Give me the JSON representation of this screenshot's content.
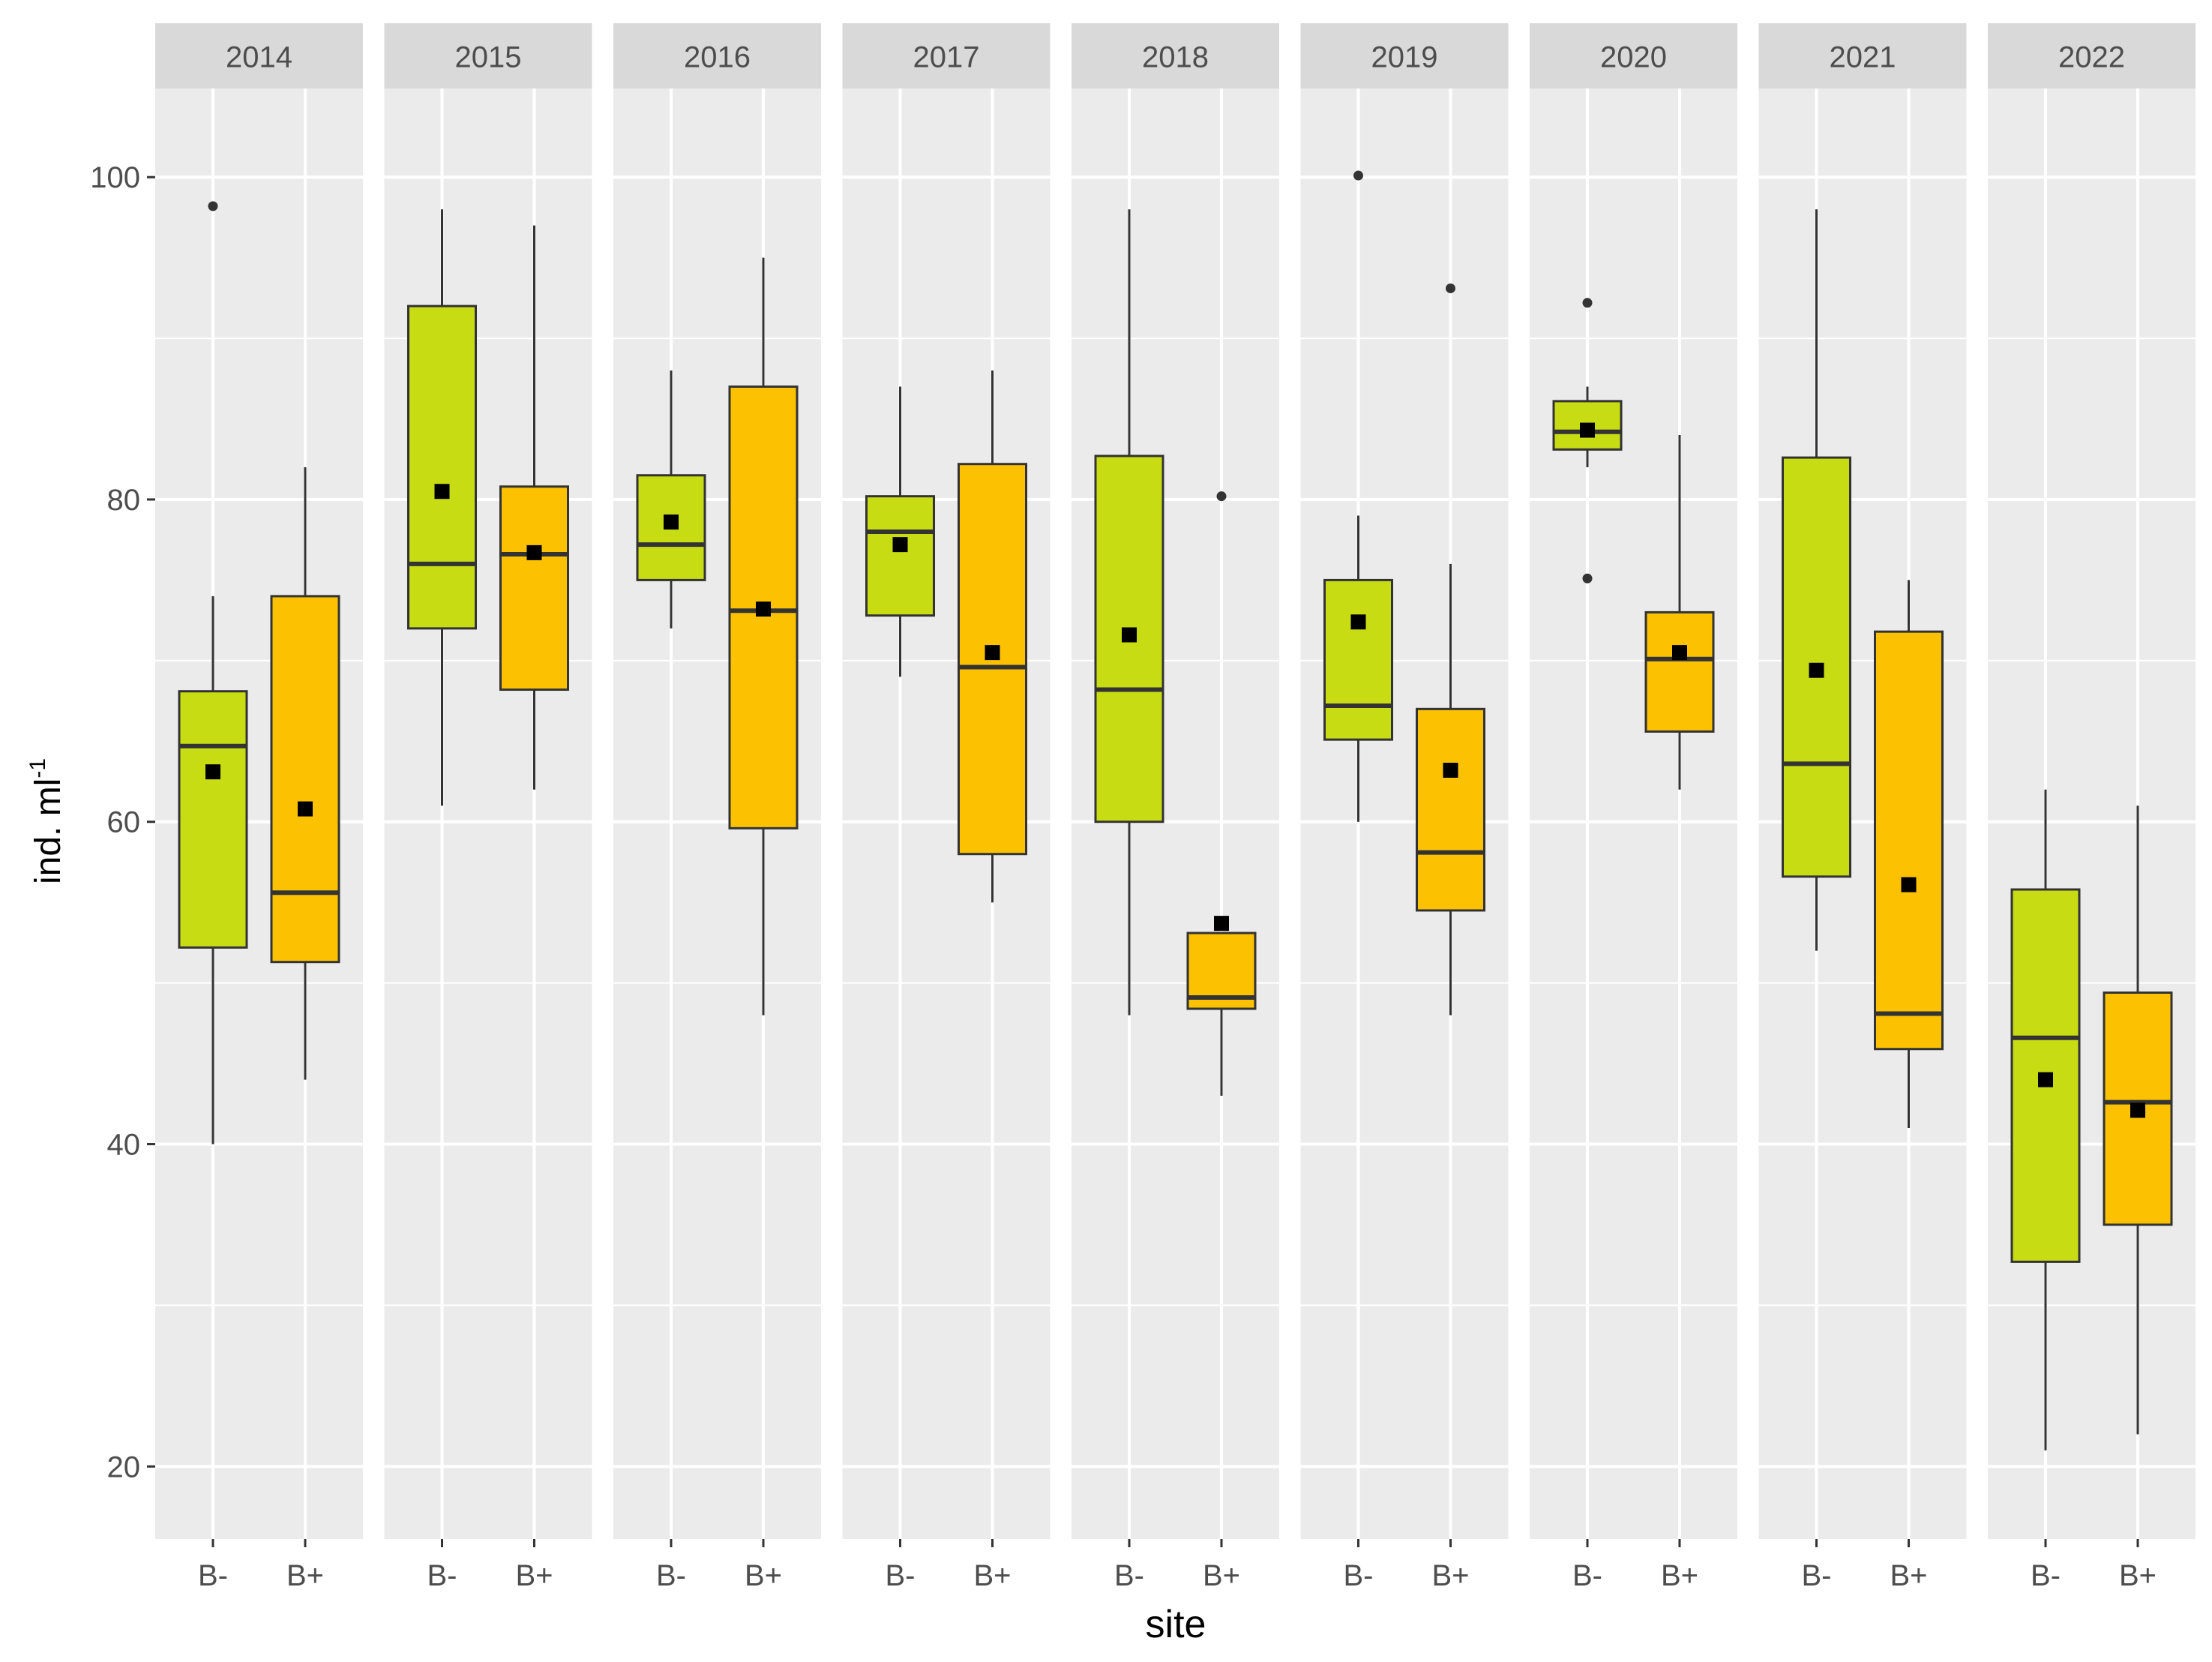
{
  "chart_data": {
    "type": "boxplot",
    "xlabel": "site",
    "ylabel_main": "ind. ml",
    "ylabel_sup": "-1",
    "ylim": [
      15.5,
      105.5
    ],
    "yticks": [
      20,
      40,
      60,
      80,
      100
    ],
    "ytick_labels": [
      "20",
      "40",
      "60",
      "80",
      "100"
    ],
    "grid": true,
    "categories": [
      "B-",
      "B+"
    ],
    "fill_colors": {
      "B-": "#c8dc14",
      "B+": "#fcc100"
    },
    "outline_color": "#333333",
    "panel_bg": "#ebebeb",
    "strip_bg": "#d9d9d9",
    "panels": [
      {
        "year": "2014",
        "boxes": [
          {
            "site": "B-",
            "min": 40,
            "q1": 52.2,
            "median": 64.7,
            "q3": 68.1,
            "max": 74,
            "mean": 63.1,
            "outliers": [
              98.2
            ]
          },
          {
            "site": "B+",
            "min": 44,
            "q1": 51.3,
            "median": 55.6,
            "q3": 74,
            "max": 82,
            "mean": 60.8,
            "outliers": []
          }
        ]
      },
      {
        "year": "2015",
        "boxes": [
          {
            "site": "B-",
            "min": 61,
            "q1": 72,
            "median": 76,
            "q3": 92,
            "max": 98,
            "mean": 80.5,
            "outliers": []
          },
          {
            "site": "B+",
            "min": 62,
            "q1": 68.2,
            "median": 76.6,
            "q3": 80.8,
            "max": 97,
            "mean": 76.7,
            "outliers": []
          }
        ]
      },
      {
        "year": "2016",
        "boxes": [
          {
            "site": "B-",
            "min": 72,
            "q1": 75,
            "median": 77.2,
            "q3": 81.5,
            "max": 88,
            "mean": 78.6,
            "outliers": []
          },
          {
            "site": "B+",
            "min": 48,
            "q1": 59.6,
            "median": 73.1,
            "q3": 87,
            "max": 95,
            "mean": 73.2,
            "outliers": []
          }
        ]
      },
      {
        "year": "2017",
        "boxes": [
          {
            "site": "B-",
            "min": 69,
            "q1": 72.8,
            "median": 78,
            "q3": 80.2,
            "max": 87,
            "mean": 77.2,
            "outliers": []
          },
          {
            "site": "B+",
            "min": 55,
            "q1": 58,
            "median": 69.6,
            "q3": 82.2,
            "max": 88,
            "mean": 70.5,
            "outliers": []
          }
        ]
      },
      {
        "year": "2018",
        "boxes": [
          {
            "site": "B-",
            "min": 48,
            "q1": 60,
            "median": 68.2,
            "q3": 82.7,
            "max": 98,
            "mean": 71.6,
            "outliers": []
          },
          {
            "site": "B+",
            "min": 43,
            "q1": 48.4,
            "median": 49.1,
            "q3": 53.1,
            "max": 53.1,
            "mean": 53.7,
            "outliers": [
              80.2
            ]
          }
        ]
      },
      {
        "year": "2019",
        "boxes": [
          {
            "site": "B-",
            "min": 60,
            "q1": 65.1,
            "median": 67.2,
            "q3": 75,
            "max": 79,
            "mean": 72.4,
            "outliers": [
              100.1
            ]
          },
          {
            "site": "B+",
            "min": 48,
            "q1": 54.5,
            "median": 58.1,
            "q3": 67,
            "max": 76,
            "mean": 63.2,
            "outliers": [
              93.1
            ]
          }
        ]
      },
      {
        "year": "2020",
        "boxes": [
          {
            "site": "B-",
            "min": 82,
            "q1": 83.1,
            "median": 84.2,
            "q3": 86.1,
            "max": 87,
            "mean": 84.3,
            "outliers": [
              92.2,
              75.1
            ]
          },
          {
            "site": "B+",
            "min": 62,
            "q1": 65.6,
            "median": 70.1,
            "q3": 73,
            "max": 84,
            "mean": 70.5,
            "outliers": []
          }
        ]
      },
      {
        "year": "2021",
        "boxes": [
          {
            "site": "B-",
            "min": 52,
            "q1": 56.6,
            "median": 63.6,
            "q3": 82.6,
            "max": 98,
            "mean": 69.4,
            "outliers": []
          },
          {
            "site": "B+",
            "min": 41,
            "q1": 45.9,
            "median": 48.1,
            "q3": 71.8,
            "max": 75,
            "mean": 56.1,
            "outliers": []
          }
        ]
      },
      {
        "year": "2022",
        "boxes": [
          {
            "site": "B-",
            "min": 21,
            "q1": 32.7,
            "median": 46.6,
            "q3": 55.8,
            "max": 62,
            "mean": 44,
            "outliers": []
          },
          {
            "site": "B+",
            "min": 22,
            "q1": 35,
            "median": 42.6,
            "q3": 49.4,
            "max": 61,
            "mean": 42.1,
            "outliers": []
          }
        ]
      }
    ]
  }
}
